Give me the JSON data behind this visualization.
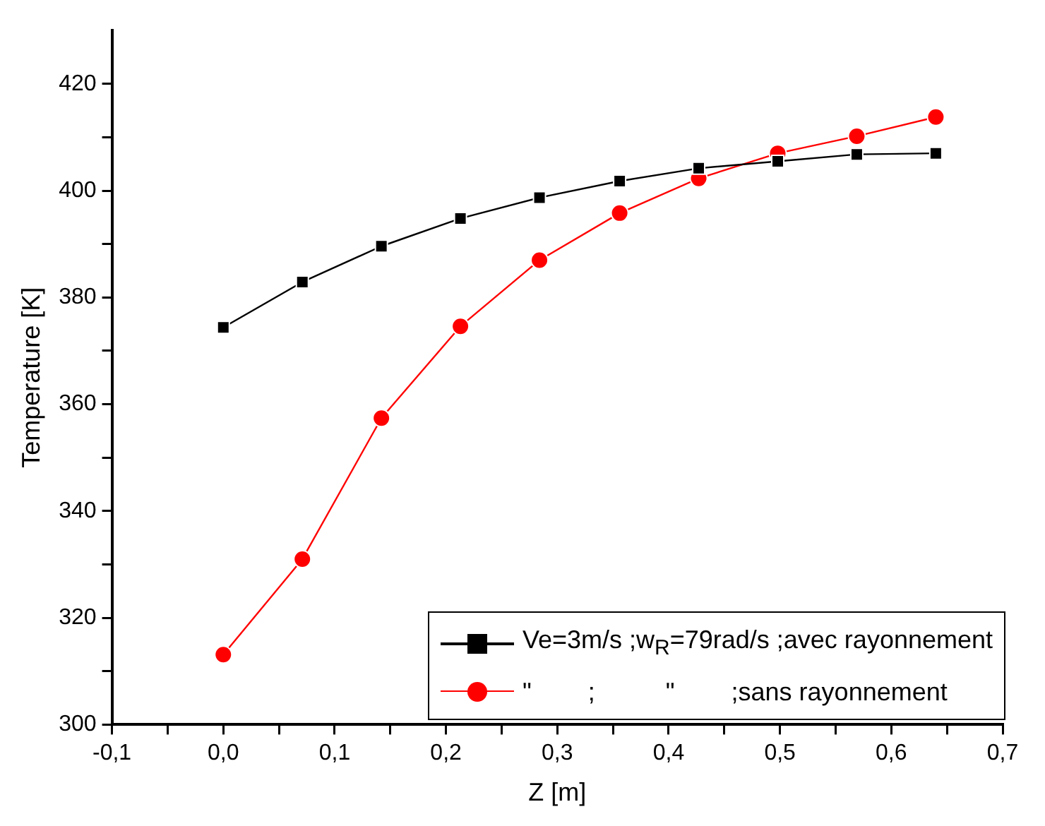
{
  "chart_data": {
    "type": "line",
    "xlabel": "Z [m]",
    "ylabel": "Temperature [K]",
    "xlim": [
      -0.1,
      0.7
    ],
    "ylim": [
      300,
      430
    ],
    "xticks": [
      {
        "value": -0.1,
        "label": "-0,1"
      },
      {
        "value": -0.05,
        "label": null
      },
      {
        "value": 0,
        "label": "0,0"
      },
      {
        "value": 0.05,
        "label": null
      },
      {
        "value": 0.1,
        "label": "0,1"
      },
      {
        "value": 0.15,
        "label": null
      },
      {
        "value": 0.2,
        "label": "0,2"
      },
      {
        "value": 0.25,
        "label": null
      },
      {
        "value": 0.3,
        "label": "0,3"
      },
      {
        "value": 0.35,
        "label": null
      },
      {
        "value": 0.4,
        "label": "0,4"
      },
      {
        "value": 0.45,
        "label": null
      },
      {
        "value": 0.5,
        "label": "0,5"
      },
      {
        "value": 0.55,
        "label": null
      },
      {
        "value": 0.6,
        "label": "0,6"
      },
      {
        "value": 0.65,
        "label": null
      },
      {
        "value": 0.7,
        "label": "0,7"
      }
    ],
    "yticks": [
      300,
      {
        "value": 310,
        "label": null
      },
      320,
      {
        "value": 330,
        "label": null
      },
      340,
      {
        "value": 350,
        "label": null
      },
      360,
      {
        "value": 370,
        "label": null
      },
      380,
      {
        "value": 390,
        "label": null
      },
      400,
      {
        "value": 410,
        "label": null
      },
      420
    ],
    "x": [
      0,
      0.071,
      0.142,
      0.213,
      0.284,
      0.356,
      0.427,
      0.498,
      0.569,
      0.64
    ],
    "series": [
      {
        "name": "Ve=3m/s ;w$_{R}$=79rad/s ;avec rayonnement",
        "color": "#000000",
        "marker": "square",
        "values": [
          374.4,
          382.9,
          389.6,
          394.8,
          398.7,
          401.8,
          404.2,
          405.5,
          406.8,
          407.0
        ]
      },
      {
        "name": "\"        ;          \"        ;sans rayonnement",
        "color": "#ff0000",
        "marker": "circle",
        "values": [
          313.1,
          331.0,
          357.4,
          374.6,
          387.0,
          395.8,
          402.3,
          407.0,
          410.2,
          413.8
        ]
      }
    ],
    "grid": false,
    "legend": "bottom right",
    "line_style": "solid"
  }
}
